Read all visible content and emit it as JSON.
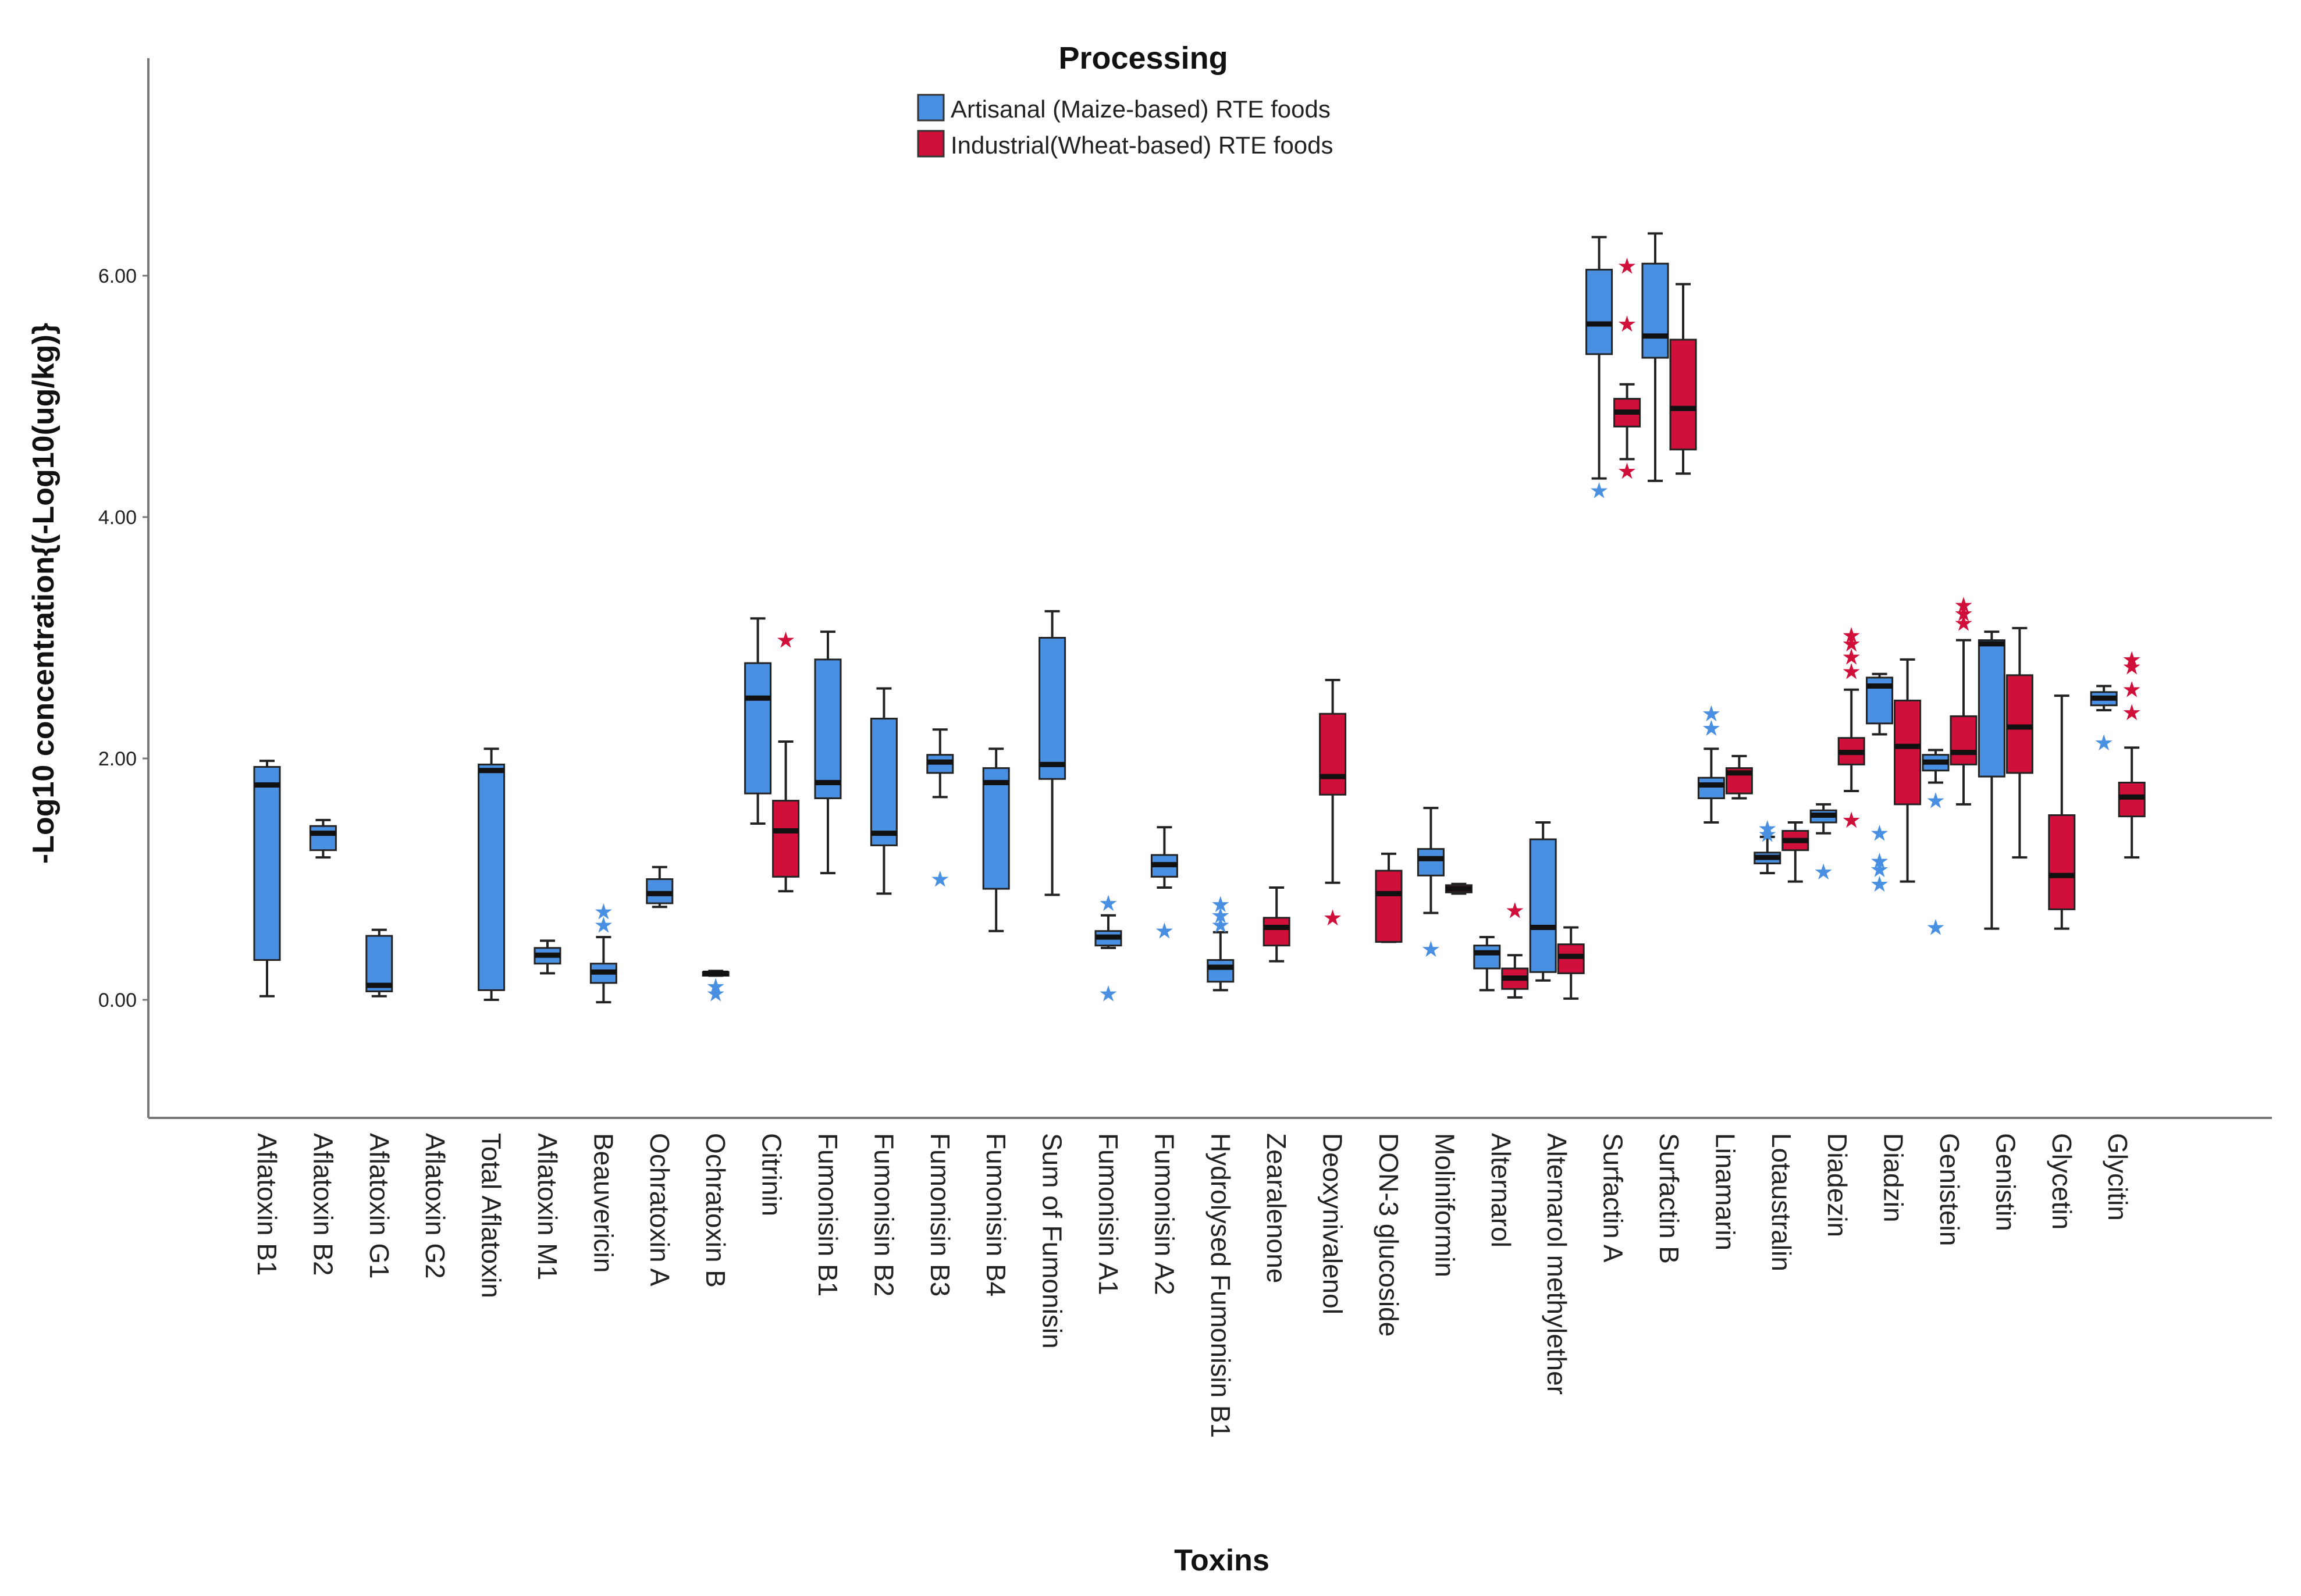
{
  "chart_data": {
    "type": "boxplot",
    "title": "Processing",
    "xlabel": "Toxins",
    "ylabel": "-Log10 concentration{(-Log10(ug/kg)}",
    "ylim": [
      -0.9,
      7.7
    ],
    "yticks": [
      0,
      2,
      4,
      6
    ],
    "ytick_labels": [
      "0.00",
      "2.00",
      "4.00",
      "6.00"
    ],
    "legend": {
      "position": "top-center",
      "entries": [
        {
          "name": "Artisanal (Maize-based) RTE foods",
          "color": "#4a90e2"
        },
        {
          "name": "Industrial(Wheat-based) RTE foods",
          "color": "#d0103a"
        }
      ]
    },
    "colors": {
      "artisanal": "#4a90e2",
      "industrial": "#d0103a",
      "axis": "#777777",
      "median": "#111111"
    },
    "categories": [
      "Aflatoxin B1",
      "Aflatoxin B2",
      "Aflatoxin G1",
      "Aflatoxin G2",
      "Total Aflatoxin",
      "Aflatoxin M1",
      "Beauvericin",
      "Ochratoxin A",
      "Ochratoxin B",
      "Citrinin",
      "Fumonisin B1",
      "Fumonisin B2",
      "Fumonisin B3",
      "Fumonisin B4",
      "Sum of Fumonisin",
      "Fumonisin A1",
      "Fumonisin A2",
      "Hydrolysed Fumonisin B1",
      "Zearalenone",
      "Deoxynivalenol",
      "DON-3 glucoside",
      "Moliniformin",
      "Alternarol",
      "Alternarol methylether",
      "Surfactin A",
      "Surfactin B",
      "Linamarin",
      "Lotaustralin",
      "Diadezin",
      "Diadzin",
      "Genistein",
      "Genistin",
      "Glycetin",
      "Glycitin"
    ],
    "series": [
      {
        "name": "Artisanal (Maize-based) RTE foods",
        "boxes": [
          {
            "category": "Aflatoxin B1",
            "min": 0.03,
            "q1": 0.33,
            "median": 1.78,
            "q3": 1.93,
            "max": 1.98
          },
          {
            "category": "Aflatoxin B2",
            "min": 1.18,
            "q1": 1.24,
            "median": 1.38,
            "q3": 1.44,
            "max": 1.49
          },
          {
            "category": "Aflatoxin G1",
            "min": 0.03,
            "q1": 0.07,
            "median": 0.12,
            "q3": 0.53,
            "max": 0.58
          },
          {
            "category": "Total Aflatoxin",
            "min": 0.0,
            "q1": 0.08,
            "median": 1.9,
            "q3": 1.95,
            "max": 2.08
          },
          {
            "category": "Aflatoxin M1",
            "min": 0.22,
            "q1": 0.3,
            "median": 0.37,
            "q3": 0.43,
            "max": 0.49
          },
          {
            "category": "Beauvericin",
            "min": -0.02,
            "q1": 0.14,
            "median": 0.23,
            "q3": 0.3,
            "max": 0.52,
            "outliers": [
              0.73,
              0.62
            ]
          },
          {
            "category": "Ochratoxin A",
            "min": 0.77,
            "q1": 0.8,
            "median": 0.88,
            "q3": 1.0,
            "max": 1.1
          },
          {
            "category": "Ochratoxin B",
            "min": 0.2,
            "q1": 0.2,
            "median": 0.22,
            "q3": 0.23,
            "max": 0.24,
            "outliers": [
              0.11,
              0.05
            ]
          },
          {
            "category": "Citrinin",
            "min": 1.46,
            "q1": 1.71,
            "median": 2.5,
            "q3": 2.79,
            "max": 3.16
          },
          {
            "category": "Fumonisin B1",
            "min": 1.05,
            "q1": 1.67,
            "median": 1.8,
            "q3": 2.82,
            "max": 3.05
          },
          {
            "category": "Fumonisin B2",
            "min": 0.88,
            "q1": 1.28,
            "median": 1.38,
            "q3": 2.33,
            "max": 2.58
          },
          {
            "category": "Fumonisin B3",
            "min": 1.68,
            "q1": 1.88,
            "median": 1.97,
            "q3": 2.03,
            "max": 2.24,
            "outliers": [
              1.0
            ]
          },
          {
            "category": "Fumonisin B4",
            "min": 0.57,
            "q1": 0.92,
            "median": 1.8,
            "q3": 1.92,
            "max": 2.08
          },
          {
            "category": "Sum of Fumonisin",
            "min": 0.87,
            "q1": 1.83,
            "median": 1.95,
            "q3": 3.0,
            "max": 3.22
          },
          {
            "category": "Fumonisin A1",
            "min": 0.43,
            "q1": 0.45,
            "median": 0.52,
            "q3": 0.57,
            "max": 0.7,
            "outliers": [
              0.8,
              0.05
            ]
          },
          {
            "category": "Fumonisin A2",
            "min": 0.93,
            "q1": 1.02,
            "median": 1.12,
            "q3": 1.2,
            "max": 1.43,
            "outliers": [
              0.57
            ]
          },
          {
            "category": "Hydrolysed Fumonisin B1",
            "min": 0.08,
            "q1": 0.15,
            "median": 0.27,
            "q3": 0.33,
            "max": 0.56,
            "outliers": [
              0.79,
              0.7,
              0.62
            ]
          },
          {
            "category": "Moliniformin",
            "min": 0.72,
            "q1": 1.03,
            "median": 1.17,
            "q3": 1.25,
            "max": 1.59,
            "outliers": [
              0.42
            ]
          },
          {
            "category": "Alternarol",
            "min": 0.08,
            "q1": 0.26,
            "median": 0.39,
            "q3": 0.45,
            "max": 0.52
          },
          {
            "category": "Alternarol methylether",
            "min": 0.16,
            "q1": 0.23,
            "median": 0.6,
            "q3": 1.33,
            "max": 1.47
          },
          {
            "category": "Surfactin A",
            "min": 4.32,
            "q1": 5.35,
            "median": 5.6,
            "q3": 6.05,
            "max": 6.32,
            "outliers": [
              4.22
            ]
          },
          {
            "category": "Surfactin B",
            "min": 4.3,
            "q1": 5.32,
            "median": 5.5,
            "q3": 6.1,
            "max": 6.35
          },
          {
            "category": "Linamarin",
            "min": 1.47,
            "q1": 1.67,
            "median": 1.78,
            "q3": 1.84,
            "max": 2.08,
            "outliers": [
              2.37,
              2.25
            ]
          },
          {
            "category": "Lotaustralin",
            "min": 1.05,
            "q1": 1.13,
            "median": 1.18,
            "q3": 1.22,
            "max": 1.35,
            "outliers": [
              1.42,
              1.37
            ]
          },
          {
            "category": "Diadezin",
            "min": 1.38,
            "q1": 1.47,
            "median": 1.53,
            "q3": 1.57,
            "max": 1.62,
            "outliers": [
              1.06
            ]
          },
          {
            "category": "Diadzin",
            "min": 2.2,
            "q1": 2.29,
            "median": 2.6,
            "q3": 2.67,
            "max": 2.7,
            "outliers": [
              1.38,
              1.15,
              1.08,
              0.96
            ]
          },
          {
            "category": "Genistein",
            "min": 1.8,
            "q1": 1.9,
            "median": 1.97,
            "q3": 2.03,
            "max": 2.07,
            "outliers": [
              1.65,
              0.6
            ]
          },
          {
            "category": "Genistin",
            "min": 0.59,
            "q1": 1.85,
            "median": 2.95,
            "q3": 2.98,
            "max": 3.05
          },
          {
            "category": "Glycitin",
            "min": 2.4,
            "q1": 2.44,
            "median": 2.5,
            "q3": 2.55,
            "max": 2.6,
            "outliers": [
              2.13
            ]
          }
        ]
      },
      {
        "name": "Industrial(Wheat-based) RTE foods",
        "boxes": [
          {
            "category": "Citrinin",
            "min": 0.9,
            "q1": 1.02,
            "median": 1.4,
            "q3": 1.65,
            "max": 2.14,
            "outliers": [
              2.98
            ]
          },
          {
            "category": "Zearalenone",
            "min": 0.32,
            "q1": 0.45,
            "median": 0.6,
            "q3": 0.68,
            "max": 0.93
          },
          {
            "category": "Deoxynivalenol",
            "min": 0.97,
            "q1": 1.7,
            "median": 1.85,
            "q3": 2.37,
            "max": 2.65,
            "outliers": [
              0.68
            ]
          },
          {
            "category": "DON-3 glucoside",
            "min": 0.48,
            "q1": 0.48,
            "median": 0.88,
            "q3": 1.07,
            "max": 1.21
          },
          {
            "category": "Moliniformin",
            "min": 0.88,
            "q1": 0.89,
            "median": 0.92,
            "q3": 0.95,
            "max": 0.96
          },
          {
            "category": "Alternarol",
            "min": 0.02,
            "q1": 0.09,
            "median": 0.18,
            "q3": 0.26,
            "max": 0.37,
            "outliers": [
              0.74
            ]
          },
          {
            "category": "Alternarol methylether",
            "min": 0.01,
            "q1": 0.22,
            "median": 0.36,
            "q3": 0.46,
            "max": 0.6
          },
          {
            "category": "Surfactin A",
            "min": 4.48,
            "q1": 4.75,
            "median": 4.87,
            "q3": 4.98,
            "max": 5.1,
            "outliers": [
              6.08,
              5.6,
              4.38
            ]
          },
          {
            "category": "Surfactin B",
            "min": 4.36,
            "q1": 4.56,
            "median": 4.9,
            "q3": 5.47,
            "max": 5.93
          },
          {
            "category": "Linamarin",
            "min": 1.67,
            "q1": 1.71,
            "median": 1.88,
            "q3": 1.92,
            "max": 2.02
          },
          {
            "category": "Lotaustralin",
            "min": 0.98,
            "q1": 1.24,
            "median": 1.32,
            "q3": 1.4,
            "max": 1.47
          },
          {
            "category": "Diadezin",
            "min": 1.73,
            "q1": 1.95,
            "median": 2.05,
            "q3": 2.17,
            "max": 2.57,
            "outliers": [
              3.02,
              2.95,
              2.84,
              2.72,
              1.49
            ]
          },
          {
            "category": "Diadzin",
            "min": 0.98,
            "q1": 1.62,
            "median": 2.1,
            "q3": 2.48,
            "max": 2.82
          },
          {
            "category": "Genistein",
            "min": 1.62,
            "q1": 1.95,
            "median": 2.05,
            "q3": 2.35,
            "max": 2.98,
            "outliers": [
              3.27,
              3.2,
              3.12
            ]
          },
          {
            "category": "Genistin",
            "min": 1.18,
            "q1": 1.88,
            "median": 2.26,
            "q3": 2.69,
            "max": 3.08
          },
          {
            "category": "Glycetin",
            "min": 0.59,
            "q1": 0.75,
            "median": 1.03,
            "q3": 1.53,
            "max": 2.52
          },
          {
            "category": "Glycitin",
            "min": 1.18,
            "q1": 1.52,
            "median": 1.68,
            "q3": 1.8,
            "max": 2.09,
            "outliers": [
              2.82,
              2.76,
              2.57,
              2.38
            ]
          }
        ]
      }
    ]
  }
}
